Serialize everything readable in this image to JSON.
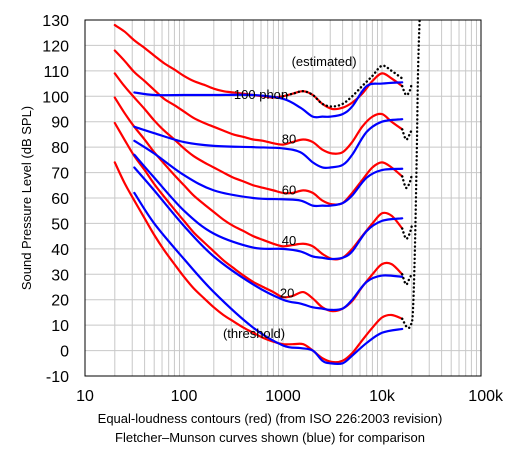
{
  "chart_data": {
    "type": "line",
    "xscale": "log",
    "xlim": [
      10,
      100000
    ],
    "ylim": [
      -10,
      130
    ],
    "ylabel": "Sound Pressure Level (dB SPL)",
    "grid": true,
    "x_tick_labels": [
      {
        "value": 10,
        "label": "10"
      },
      {
        "value": 100,
        "label": "100"
      },
      {
        "value": 1000,
        "label": "1000"
      },
      {
        "value": 10000,
        "label": "10k"
      },
      {
        "value": 100000,
        "label": "100k"
      }
    ],
    "y_ticks": [
      -10,
      0,
      10,
      20,
      30,
      40,
      50,
      60,
      70,
      80,
      90,
      100,
      110,
      120,
      130
    ],
    "y_tick_labels": [
      "-10",
      "0",
      "10",
      "20",
      "30",
      "40",
      "50",
      "60",
      "70",
      "80",
      "90",
      "100",
      "110",
      "120",
      "130"
    ],
    "caption_lines": [
      "Equal-loudness contours (red) (from ISO 226:2003 revision)",
      "Fletcher–Munson curves shown (blue) for comparison"
    ],
    "annotations": [
      {
        "text": "(estimated)",
        "x": 2600,
        "y": 113.5
      },
      {
        "text": "100 phon",
        "x": 600,
        "y": 100.5
      },
      {
        "text": "80",
        "x": 1150,
        "y": 83
      },
      {
        "text": "60",
        "x": 1150,
        "y": 63
      },
      {
        "text": "40",
        "x": 1150,
        "y": 43
      },
      {
        "text": "20",
        "x": 1100,
        "y": 22.5
      },
      {
        "text": "(threshold)",
        "x": 510,
        "y": 6.5
      }
    ],
    "series": [
      {
        "group": "iso",
        "color": "#ff0000",
        "style": "solid",
        "x": [
          20,
          25,
          31.5,
          40,
          50,
          63,
          80,
          100,
          125,
          160,
          200,
          250,
          315,
          400,
          500,
          630,
          800,
          1000,
          1250,
          1600,
          2000,
          2500,
          3150,
          4000,
          5000,
          6300,
          8000,
          10000,
          12500,
          16000
        ],
        "y": [
          128,
          125.5,
          122,
          119,
          116,
          113,
          110.5,
          108,
          106,
          104.5,
          103,
          102,
          101.5,
          101,
          100.5,
          100,
          99.5,
          100,
          101,
          102,
          100.5,
          97,
          95,
          95.5,
          97.5,
          101,
          106,
          109,
          107,
          104
        ]
      },
      {
        "group": "iso",
        "color": "#ff0000",
        "style": "solid",
        "x": [
          20,
          25,
          31.5,
          40,
          50,
          63,
          80,
          100,
          125,
          160,
          200,
          250,
          315,
          400,
          500,
          630,
          800,
          1000,
          1250,
          1600,
          2000,
          2500,
          3150,
          4000,
          5000,
          6300,
          8000,
          10000,
          12500,
          16000
        ],
        "y": [
          118,
          114,
          109.5,
          106,
          102.5,
          99,
          96.5,
          94,
          91.5,
          89.5,
          88,
          86.5,
          85,
          84,
          83,
          82.5,
          81.5,
          81,
          82,
          83,
          82,
          79,
          77.5,
          78,
          82,
          88,
          92,
          93,
          90,
          87
        ]
      },
      {
        "group": "iso",
        "color": "#ff0000",
        "style": "solid",
        "x": [
          20,
          25,
          31.5,
          40,
          50,
          63,
          80,
          100,
          125,
          160,
          200,
          250,
          315,
          400,
          500,
          630,
          800,
          1000,
          1250,
          1600,
          2000,
          2500,
          3150,
          4000,
          5000,
          6300,
          8000,
          10000,
          12500,
          16000
        ],
        "y": [
          109,
          104,
          99.5,
          95,
          90.5,
          86.5,
          83,
          79.5,
          76.5,
          74,
          72,
          70,
          68,
          66.5,
          65,
          64,
          63,
          62,
          62,
          63,
          62,
          59,
          57.5,
          58,
          62,
          67,
          72,
          74,
          72,
          68.5
        ]
      },
      {
        "group": "iso",
        "color": "#ff0000",
        "style": "solid",
        "x": [
          20,
          25,
          31.5,
          40,
          50,
          63,
          80,
          100,
          125,
          160,
          200,
          250,
          315,
          400,
          500,
          630,
          800,
          1000,
          1250,
          1600,
          2000,
          2500,
          3150,
          4000,
          5000,
          6300,
          8000,
          10000,
          12500,
          16000
        ],
        "y": [
          99.5,
          93.5,
          88,
          83,
          78,
          73.5,
          69,
          65,
          61,
          57.5,
          54.5,
          51.5,
          49,
          47,
          45,
          43.5,
          42,
          41,
          41.5,
          42,
          41,
          38,
          36,
          36.5,
          40,
          45,
          50,
          54,
          53,
          48
        ]
      },
      {
        "group": "iso",
        "color": "#ff0000",
        "style": "solid",
        "x": [
          20,
          25,
          31.5,
          40,
          50,
          63,
          80,
          100,
          125,
          160,
          200,
          250,
          315,
          400,
          500,
          630,
          800,
          1000,
          1250,
          1600,
          2000,
          2500,
          3150,
          4000,
          5000,
          6300,
          8000,
          10000,
          12500,
          16000
        ],
        "y": [
          89.5,
          83,
          76.5,
          71,
          65.5,
          60.5,
          55.5,
          51,
          46.5,
          42.5,
          39,
          35.5,
          32.5,
          29.5,
          27,
          25,
          23,
          21,
          21.5,
          23,
          20.5,
          17,
          15.5,
          16.5,
          19.5,
          25,
          30,
          34,
          34,
          30
        ]
      },
      {
        "group": "iso",
        "color": "#ff0000",
        "style": "solid",
        "x": [
          20,
          25,
          31.5,
          40,
          50,
          63,
          80,
          100,
          125,
          160,
          200,
          250,
          315,
          400,
          500,
          630,
          800,
          1000,
          1250,
          1600,
          2000,
          2500,
          3150,
          4000,
          5000,
          6300,
          8000,
          10000,
          12500,
          16000
        ],
        "y": [
          74,
          66,
          59,
          52,
          45.5,
          39.5,
          34,
          29,
          24.5,
          20.5,
          17,
          14,
          11.5,
          9,
          7,
          5,
          3.5,
          2.5,
          2.5,
          2.5,
          0,
          -3,
          -4.5,
          -4,
          -1,
          4,
          9,
          13,
          14,
          12.5
        ]
      },
      {
        "group": "fm",
        "color": "#0000ff",
        "style": "solid",
        "x": [
          31.5,
          50,
          100,
          200,
          500,
          1000,
          1500,
          2000,
          2500,
          3000,
          4000,
          5000,
          7000,
          10000,
          16000
        ],
        "y": [
          101.5,
          100.5,
          100.5,
          100.5,
          100.5,
          99,
          95.5,
          92,
          92,
          92,
          93,
          96,
          104,
          105,
          105.5
        ]
      },
      {
        "group": "fm",
        "color": "#0000ff",
        "style": "solid",
        "x": [
          31.5,
          50,
          100,
          200,
          500,
          1000,
          1500,
          2000,
          2500,
          3000,
          4000,
          5000,
          7000,
          10000,
          16000
        ],
        "y": [
          88,
          85.5,
          82,
          80.5,
          80,
          79.5,
          78,
          74,
          72,
          72,
          73,
          77,
          86,
          90,
          91
        ]
      },
      {
        "group": "fm",
        "color": "#0000ff",
        "style": "solid",
        "x": [
          31.5,
          50,
          100,
          200,
          500,
          1000,
          1500,
          2000,
          2500,
          3000,
          4000,
          5000,
          7000,
          10000,
          16000
        ],
        "y": [
          82.5,
          77.5,
          69,
          63,
          60,
          59.5,
          59,
          57,
          57,
          57,
          58,
          61,
          68,
          71,
          71.5
        ]
      },
      {
        "group": "fm",
        "color": "#0000ff",
        "style": "solid",
        "x": [
          31.5,
          50,
          100,
          200,
          500,
          1000,
          1500,
          2000,
          2500,
          3000,
          4000,
          5000,
          7000,
          10000,
          16000
        ],
        "y": [
          77,
          68,
          55,
          46,
          40.5,
          40,
          39,
          37,
          36.5,
          36,
          36.5,
          39,
          47,
          51,
          52
        ]
      },
      {
        "group": "fm",
        "color": "#0000ff",
        "style": "solid",
        "x": [
          31.5,
          50,
          100,
          200,
          500,
          1000,
          1500,
          2000,
          2500,
          3000,
          4000,
          5000,
          7000,
          10000,
          16000
        ],
        "y": [
          72,
          63,
          49,
          37,
          26,
          20,
          18.5,
          17,
          16.5,
          16,
          16.5,
          20,
          27,
          29.5,
          29
        ]
      },
      {
        "group": "fm",
        "color": "#0000ff",
        "style": "solid",
        "x": [
          31.5,
          50,
          100,
          200,
          500,
          1000,
          1500,
          2000,
          2500,
          3000,
          4000,
          5000,
          7000,
          10000,
          16000
        ],
        "y": [
          62,
          50,
          36,
          23,
          9,
          2,
          1,
          0,
          -4,
          -5,
          -5,
          -2,
          3,
          7,
          8.5
        ]
      },
      {
        "group": "estimated",
        "color": "#000000",
        "style": "dotted",
        "x": [
          1000,
          1250,
          1600,
          2000,
          2500,
          3150,
          4000,
          5000,
          6300,
          8000,
          10000,
          12500,
          16000
        ],
        "y": [
          100,
          101,
          102,
          100.5,
          97,
          96,
          97,
          100,
          104,
          108,
          112,
          110,
          107
        ]
      },
      {
        "group": "estimated",
        "color": "#000000",
        "style": "dotted",
        "x": [
          16000,
          17500,
          19000,
          20000
        ],
        "y": [
          104,
          100.5,
          102,
          105
        ]
      },
      {
        "group": "estimated",
        "color": "#000000",
        "style": "dotted",
        "x": [
          16000,
          17500,
          19000,
          20000
        ],
        "y": [
          87,
          83,
          85,
          87
        ]
      },
      {
        "group": "estimated",
        "color": "#000000",
        "style": "dotted",
        "x": [
          16000,
          17500,
          19000,
          20000
        ],
        "y": [
          68.5,
          64,
          66,
          69
        ]
      },
      {
        "group": "estimated",
        "color": "#000000",
        "style": "dotted",
        "x": [
          16000,
          17500,
          19000,
          20000
        ],
        "y": [
          48,
          44,
          46,
          49
        ]
      },
      {
        "group": "estimated",
        "color": "#000000",
        "style": "dotted",
        "x": [
          16000,
          17500,
          19000,
          20000
        ],
        "y": [
          30,
          26,
          28.5,
          30
        ]
      },
      {
        "group": "estimated",
        "color": "#000000",
        "style": "dotted",
        "x": [
          16000,
          18000,
          19500,
          20500,
          21500,
          22500,
          23000,
          23500,
          24000
        ],
        "y": [
          12.5,
          9,
          10,
          15,
          40,
          80,
          105,
          120,
          130
        ]
      }
    ]
  }
}
